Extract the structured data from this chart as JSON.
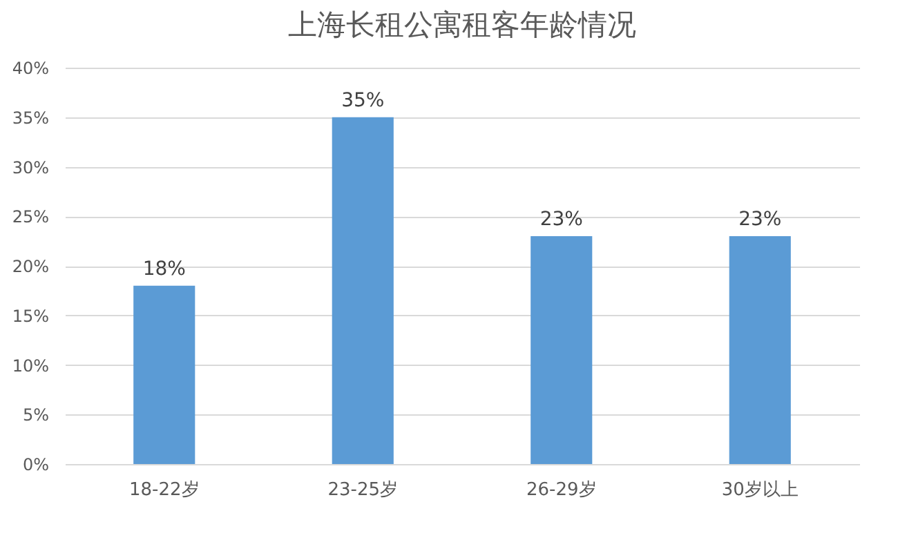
{
  "chart_data": {
    "type": "bar",
    "title": "上海长租公寓租客年龄情况",
    "categories": [
      "18-22岁",
      "23-25岁",
      "26-29岁",
      "30岁以上"
    ],
    "values": [
      18,
      35,
      23,
      23
    ],
    "value_labels": [
      "18%",
      "35%",
      "23%",
      "23%"
    ],
    "color": "#5b9bd5",
    "ylim": [
      0,
      40
    ],
    "yticks": [
      {
        "value": 0,
        "label": "0%"
      },
      {
        "value": 5,
        "label": "5%"
      },
      {
        "value": 10,
        "label": "10%"
      },
      {
        "value": 15,
        "label": "15%"
      },
      {
        "value": 20,
        "label": "20%"
      },
      {
        "value": 25,
        "label": "25%"
      },
      {
        "value": 30,
        "label": "30%"
      },
      {
        "value": 35,
        "label": "35%"
      },
      {
        "value": 40,
        "label": "40%"
      }
    ],
    "grid": "y"
  }
}
